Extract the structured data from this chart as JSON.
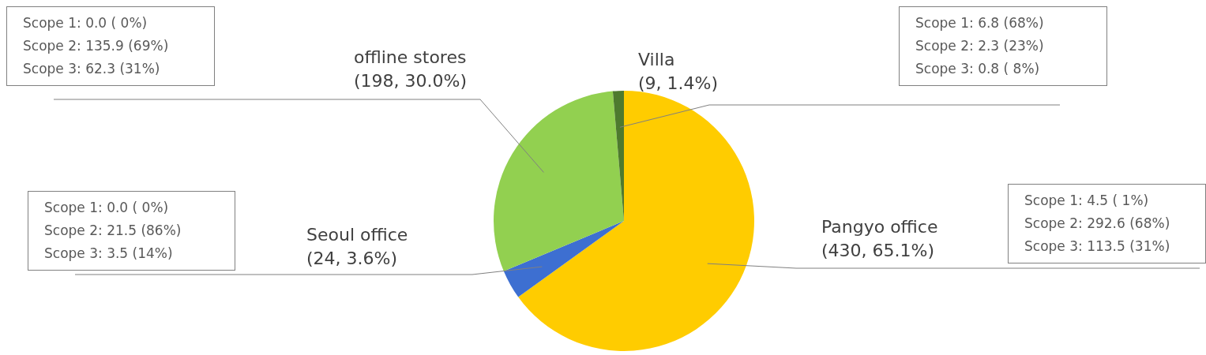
{
  "chart_data": {
    "type": "pie",
    "categories": [
      "Pangyo office",
      "Seoul office",
      "offline stores",
      "Villa"
    ],
    "values": [
      430,
      24,
      198,
      9
    ],
    "colors": [
      "#ffcc00",
      "#3d6fd1",
      "#92d050",
      "#4e7a2e"
    ],
    "value_labels": [
      "(430, 65.1%)",
      "(24, 3.6%)",
      "(198, 30.0%)",
      "(9, 1.4%)"
    ],
    "annotations": [
      "Scope 1: 4.5 ( 1%)",
      "Scope 2: 292.6 (68%)",
      "Scope 3: 113.5 (31%)",
      "Scope 1: 0.0 ( 0%)",
      "Scope 2: 21.5 (86%)",
      "Scope 3: 3.5 (14%)",
      "Scope 1: 0.0 ( 0%)",
      "Scope 2: 135.9 (69%)",
      "Scope 3: 62.3 (31%)",
      "Scope 1: 6.8 (68%)",
      "Scope 2: 2.3 (23%)",
      "Scope 3: 0.8 ( 8%)"
    ],
    "legend": false
  }
}
